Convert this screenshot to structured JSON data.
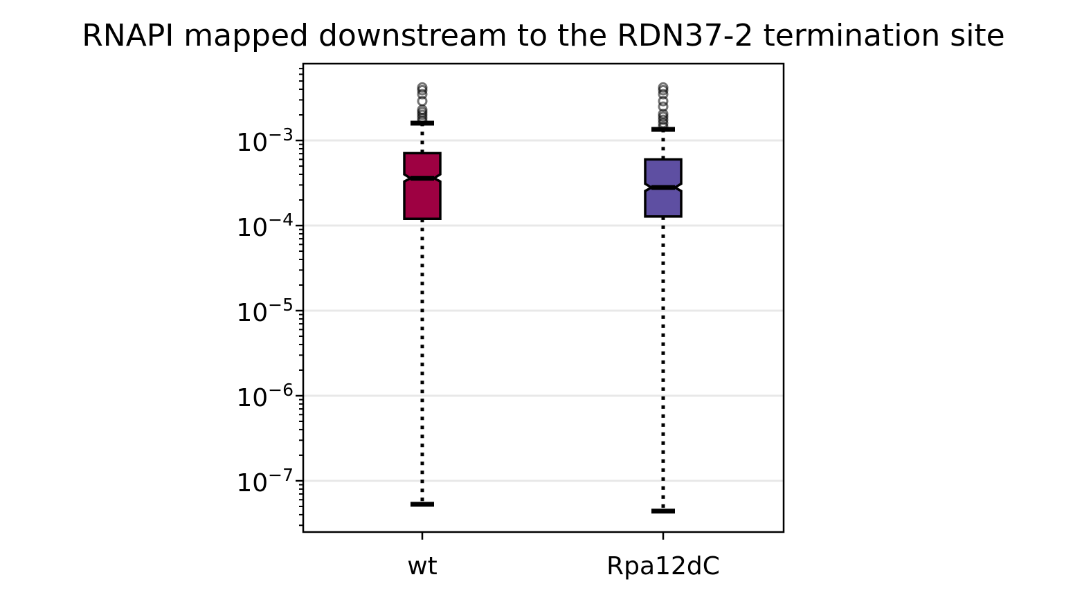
{
  "chart_data": {
    "type": "box",
    "title": "RNAPI mapped downstream to the RDN37-2 termination site",
    "xlabel": "",
    "ylabel": "",
    "yscale": "log",
    "ylim": [
      2.5e-08,
      0.008
    ],
    "yticks": [
      {
        "value": 0.001,
        "base": "10",
        "exp": "−3"
      },
      {
        "value": 0.0001,
        "base": "10",
        "exp": "−4"
      },
      {
        "value": 1e-05,
        "base": "10",
        "exp": "−5"
      },
      {
        "value": 1e-06,
        "base": "10",
        "exp": "−6"
      },
      {
        "value": 1e-07,
        "base": "10",
        "exp": "−7"
      }
    ],
    "grid": "y-major",
    "notched": true,
    "categories": [
      "wt",
      "Rpa12dC"
    ],
    "boxes": [
      {
        "label": "wt",
        "color": "#9e0142",
        "whisker_low": 5.3e-08,
        "q1": 0.00012,
        "median": 0.00036,
        "q3": 0.00071,
        "whisker_high": 0.0016,
        "notch_low": 0.00033,
        "notch_high": 0.0004,
        "fliers": [
          0.0017,
          0.00185,
          0.002,
          0.00215,
          0.0023,
          0.0029,
          0.0035,
          0.0039,
          0.0042
        ]
      },
      {
        "label": "Rpa12dC",
        "color": "#5e4fa2",
        "whisker_low": 4.4e-08,
        "q1": 0.000128,
        "median": 0.00028,
        "q3": 0.0006,
        "whisker_high": 0.00135,
        "notch_low": 0.000255,
        "notch_high": 0.00031,
        "fliers": [
          0.00145,
          0.0016,
          0.00175,
          0.0019,
          0.00205,
          0.0025,
          0.0029,
          0.0035,
          0.0039,
          0.0042
        ]
      }
    ]
  }
}
